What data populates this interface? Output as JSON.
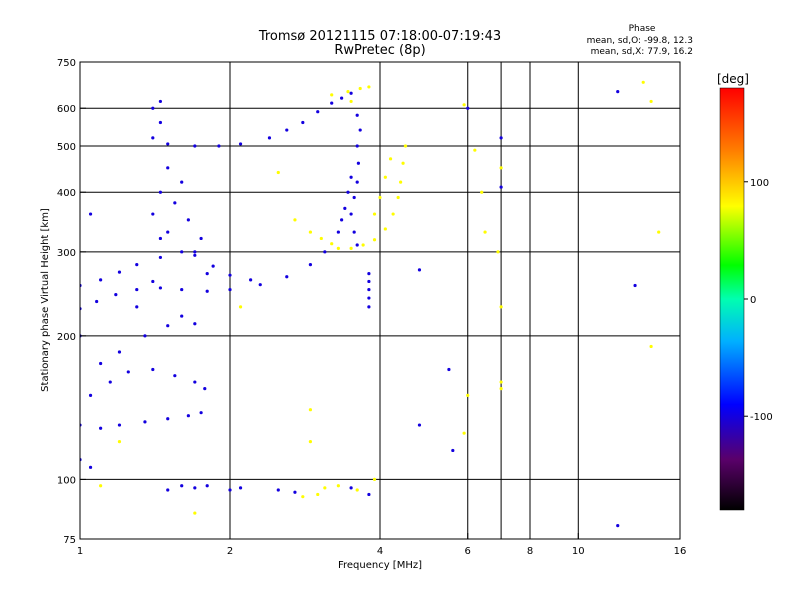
{
  "chart_data": {
    "type": "scatter",
    "title": "Tromsø 20121115 07:18:00-07:19:43",
    "subtitle": "RwPretec (8p)",
    "xlabel": "Frequency [MHz]",
    "ylabel": "Stationary phase Virtual Height [km]",
    "x_scale": "log",
    "y_scale": "log",
    "xlim": [
      1,
      16
    ],
    "ylim": [
      75,
      750
    ],
    "x_ticks": [
      1,
      2,
      4,
      6,
      8,
      10,
      16
    ],
    "y_ticks": [
      75,
      100,
      200,
      300,
      400,
      500,
      600,
      750
    ],
    "x_grid": [
      2,
      4,
      6,
      7,
      8,
      10
    ],
    "y_grid": [
      100,
      200,
      300,
      400,
      500,
      600
    ],
    "grid": true,
    "stats": {
      "heading": "Phase",
      "line_o": "mean, sd,O: -99.8, 12.3",
      "line_x": "mean, sd,X:  77.9, 16.2"
    },
    "colorbar": {
      "label": "[deg]",
      "vmin": -180,
      "vmax": 180,
      "ticks": [
        100,
        0,
        -100
      ],
      "placement": "right"
    },
    "series": [
      {
        "mode": "O",
        "phase": -100,
        "points": [
          [
            1.0,
            228
          ],
          [
            1.08,
            236
          ],
          [
            1.18,
            244
          ],
          [
            1.3,
            250
          ],
          [
            1.45,
            252
          ],
          [
            1.6,
            250
          ],
          [
            1.8,
            248
          ],
          [
            2.0,
            250
          ],
          [
            2.3,
            256
          ],
          [
            2.6,
            266
          ],
          [
            2.9,
            282
          ],
          [
            3.1,
            300
          ],
          [
            1.0,
            255
          ],
          [
            1.1,
            262
          ],
          [
            1.2,
            272
          ],
          [
            1.3,
            282
          ],
          [
            1.45,
            292
          ],
          [
            1.6,
            300
          ],
          [
            1.7,
            295
          ],
          [
            1.85,
            280
          ],
          [
            2.0,
            268
          ],
          [
            2.2,
            262
          ],
          [
            1.0,
            130
          ],
          [
            1.1,
            128
          ],
          [
            1.2,
            130
          ],
          [
            1.35,
            132
          ],
          [
            1.5,
            134
          ],
          [
            1.65,
            136
          ],
          [
            1.75,
            138
          ],
          [
            1.05,
            150
          ],
          [
            1.15,
            160
          ],
          [
            1.25,
            168
          ],
          [
            1.4,
            170
          ],
          [
            1.55,
            165
          ],
          [
            1.7,
            160
          ],
          [
            1.78,
            155
          ],
          [
            1.1,
            175
          ],
          [
            1.2,
            185
          ],
          [
            1.35,
            200
          ],
          [
            1.5,
            210
          ],
          [
            1.6,
            220
          ],
          [
            1.7,
            212
          ],
          [
            1.3,
            230
          ],
          [
            1.4,
            260
          ],
          [
            1.45,
            320
          ],
          [
            1.4,
            360
          ],
          [
            1.45,
            400
          ],
          [
            1.5,
            450
          ],
          [
            1.4,
            520
          ],
          [
            1.45,
            560
          ],
          [
            1.4,
            600
          ],
          [
            1.45,
            620
          ],
          [
            1.5,
            330
          ],
          [
            1.55,
            380
          ],
          [
            1.6,
            420
          ],
          [
            1.65,
            350
          ],
          [
            1.7,
            300
          ],
          [
            1.75,
            320
          ],
          [
            1.8,
            270
          ],
          [
            1.5,
            505
          ],
          [
            1.7,
            500
          ],
          [
            1.9,
            500
          ],
          [
            2.1,
            505
          ],
          [
            2.4,
            520
          ],
          [
            2.6,
            540
          ],
          [
            2.8,
            560
          ],
          [
            3.0,
            590
          ],
          [
            3.2,
            615
          ],
          [
            3.35,
            630
          ],
          [
            3.5,
            645
          ],
          [
            3.6,
            310
          ],
          [
            3.55,
            330
          ],
          [
            3.5,
            360
          ],
          [
            3.55,
            390
          ],
          [
            3.6,
            420
          ],
          [
            3.62,
            460
          ],
          [
            3.6,
            500
          ],
          [
            3.65,
            540
          ],
          [
            3.6,
            580
          ],
          [
            3.3,
            330
          ],
          [
            3.35,
            350
          ],
          [
            3.4,
            370
          ],
          [
            3.45,
            400
          ],
          [
            3.5,
            430
          ],
          [
            3.8,
            230
          ],
          [
            3.8,
            240
          ],
          [
            3.8,
            250
          ],
          [
            3.8,
            260
          ],
          [
            3.8,
            270
          ],
          [
            1.5,
            95
          ],
          [
            1.6,
            97
          ],
          [
            1.7,
            96
          ],
          [
            1.8,
            97
          ],
          [
            2.0,
            95
          ],
          [
            2.1,
            96
          ],
          [
            2.5,
            95
          ],
          [
            2.7,
            94
          ],
          [
            3.5,
            96
          ],
          [
            3.8,
            93
          ],
          [
            1.05,
            360
          ],
          [
            1.0,
            200
          ],
          [
            1.05,
            106
          ],
          [
            1.0,
            110
          ],
          [
            4.8,
            275
          ],
          [
            5.5,
            170
          ],
          [
            4.8,
            130
          ],
          [
            5.6,
            115
          ],
          [
            7.0,
            520
          ],
          [
            7.0,
            410
          ],
          [
            12.0,
            650
          ],
          [
            12.0,
            80
          ],
          [
            13.0,
            255
          ],
          [
            6.0,
            600
          ]
        ]
      },
      {
        "mode": "X",
        "phase": 80,
        "points": [
          [
            3.3,
            305
          ],
          [
            3.5,
            305
          ],
          [
            3.7,
            310
          ],
          [
            3.9,
            318
          ],
          [
            4.1,
            335
          ],
          [
            4.25,
            360
          ],
          [
            4.35,
            390
          ],
          [
            4.4,
            420
          ],
          [
            4.45,
            460
          ],
          [
            4.5,
            500
          ],
          [
            3.9,
            360
          ],
          [
            4.0,
            390
          ],
          [
            4.1,
            430
          ],
          [
            4.2,
            470
          ],
          [
            3.2,
            640
          ],
          [
            3.45,
            650
          ],
          [
            3.65,
            660
          ],
          [
            3.8,
            665
          ],
          [
            3.5,
            620
          ],
          [
            2.7,
            350
          ],
          [
            2.9,
            330
          ],
          [
            3.05,
            320
          ],
          [
            3.2,
            312
          ],
          [
            3.1,
            96
          ],
          [
            3.3,
            97
          ],
          [
            3.6,
            95
          ],
          [
            3.9,
            100
          ],
          [
            2.8,
            92
          ],
          [
            3.0,
            93
          ],
          [
            2.1,
            230
          ],
          [
            2.5,
            440
          ],
          [
            2.9,
            140
          ],
          [
            2.9,
            120
          ],
          [
            5.9,
            125
          ],
          [
            5.9,
            610
          ],
          [
            6.2,
            490
          ],
          [
            6.4,
            400
          ],
          [
            6.5,
            330
          ],
          [
            6.9,
            300
          ],
          [
            7.0,
            450
          ],
          [
            7.0,
            230
          ],
          [
            7.0,
            160
          ],
          [
            7.0,
            155
          ],
          [
            13.5,
            680
          ],
          [
            14.0,
            620
          ],
          [
            14.5,
            330
          ],
          [
            14.0,
            190
          ],
          [
            1.2,
            120
          ],
          [
            1.7,
            85
          ],
          [
            1.1,
            97
          ],
          [
            6.0,
            150
          ]
        ]
      }
    ]
  }
}
